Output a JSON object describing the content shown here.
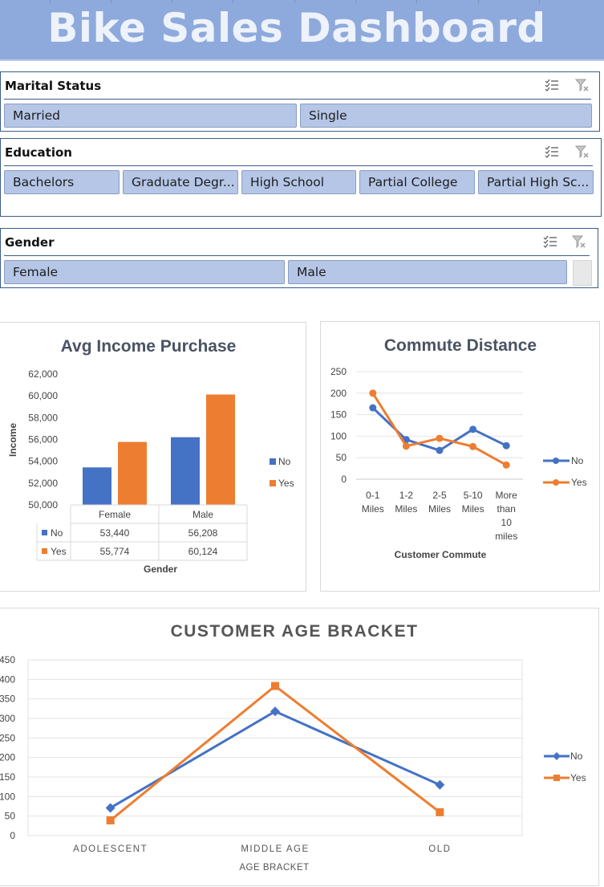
{
  "header": {
    "title": "Bike Sales Dashboard"
  },
  "slicers": {
    "marital": {
      "title": "Marital Status",
      "items": [
        "Married",
        "Single"
      ]
    },
    "education": {
      "title": "Education",
      "items": [
        "Bachelors",
        "Graduate Degr...",
        "High School",
        "Partial College",
        "Partial High Sc..."
      ]
    },
    "gender": {
      "title": "Gender",
      "items": [
        "Female",
        "Male"
      ]
    }
  },
  "icons": {
    "multiselect": "multi-select-icon",
    "clear_filter": "clear-filter-icon"
  },
  "colors": {
    "header_bg": "#8eaadc",
    "chip_bg": "#b5c6e7",
    "no": "#4472c4",
    "yes": "#ed7d31"
  },
  "charts": {
    "income": {
      "title": "Avg Income Purchase",
      "ylabel": "Income",
      "xlabel": "Gender",
      "yticks": [
        "62,000",
        "60,000",
        "58,000",
        "56,000",
        "54,000",
        "52,000",
        "50,000"
      ],
      "table_rows": [
        {
          "label": "No",
          "cells": [
            "53,440",
            "56,208"
          ]
        },
        {
          "label": "Yes",
          "cells": [
            "55,774",
            "60,124"
          ]
        }
      ]
    },
    "commute": {
      "title": "Commute Distance",
      "xlabel": "Customer Commute",
      "yticks": [
        "250",
        "200",
        "150",
        "100",
        "50",
        "0"
      ],
      "xtick_lines": [
        [
          "0-1",
          "Miles"
        ],
        [
          "1-2",
          "Miles"
        ],
        [
          "2-5",
          "Miles"
        ],
        [
          "5-10",
          "Miles"
        ],
        [
          "More",
          "than",
          "10",
          "miles"
        ]
      ]
    },
    "age": {
      "title": "CUSTOMER AGE BRACKET",
      "xlabel": "AGE BRACKET",
      "yticks": [
        "450",
        "400",
        "350",
        "300",
        "250",
        "200",
        "150",
        "100",
        "50",
        "0"
      ]
    }
  },
  "chart_data": [
    {
      "type": "bar",
      "title": "Avg Income Purchase",
      "xlabel": "Gender",
      "ylabel": "Income",
      "categories": [
        "Female",
        "Male"
      ],
      "series": [
        {
          "name": "No",
          "values": [
            53440,
            56208
          ]
        },
        {
          "name": "Yes",
          "values": [
            55774,
            60124
          ]
        }
      ],
      "ylim": [
        50000,
        62000
      ],
      "legend": "right"
    },
    {
      "type": "line",
      "title": "Commute Distance",
      "xlabel": "Customer Commute",
      "categories": [
        "0-1 Miles",
        "1-2 Miles",
        "2-5 Miles",
        "5-10 Miles",
        "More than 10 miles"
      ],
      "series": [
        {
          "name": "No",
          "values": [
            166,
            92,
            67,
            116,
            78
          ]
        },
        {
          "name": "Yes",
          "values": [
            200,
            77,
            95,
            76,
            33
          ]
        }
      ],
      "ylim": [
        0,
        250
      ],
      "legend": "right"
    },
    {
      "type": "line",
      "title": "CUSTOMER AGE BRACKET",
      "xlabel": "AGE BRACKET",
      "categories": [
        "ADOLESCENT",
        "MIDDLE AGE",
        "OLD"
      ],
      "series": [
        {
          "name": "No",
          "values": [
            71,
            318,
            130
          ]
        },
        {
          "name": "Yes",
          "values": [
            39,
            383,
            60
          ]
        }
      ],
      "ylim": [
        0,
        450
      ],
      "legend": "right"
    }
  ]
}
